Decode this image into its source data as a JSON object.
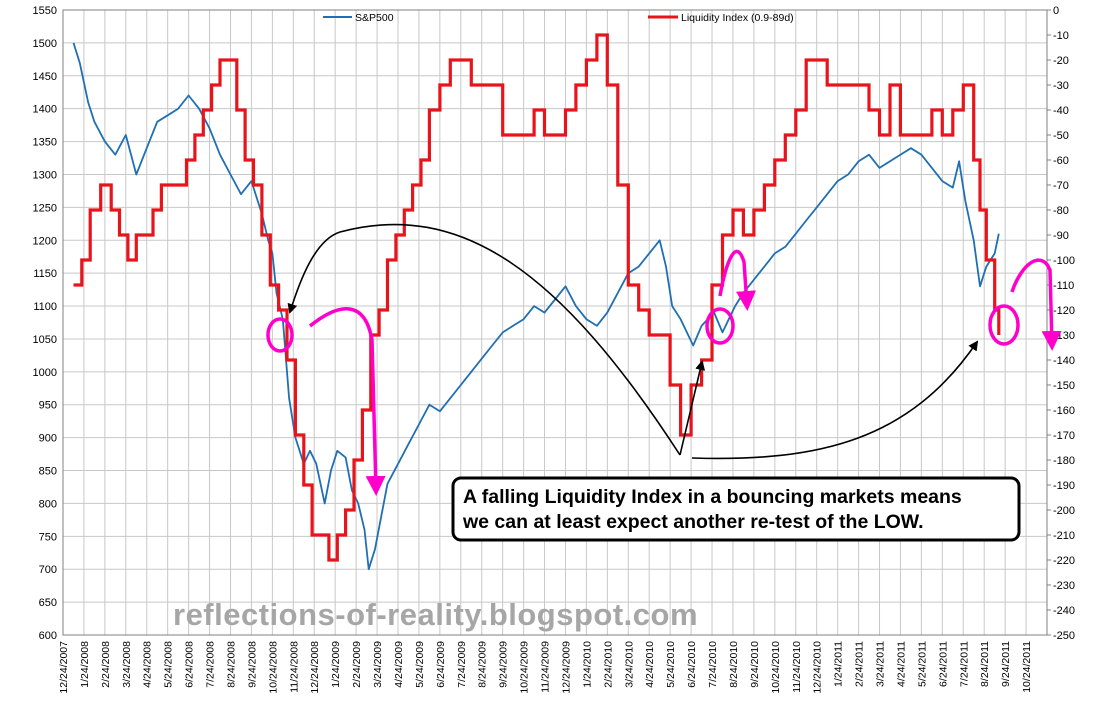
{
  "chart_data": {
    "type": "line",
    "title": "",
    "y_left": {
      "ylim": [
        600,
        1550
      ],
      "ticks": [
        "600",
        "650",
        "700",
        "750",
        "800",
        "850",
        "900",
        "950",
        "1000",
        "1050",
        "1100",
        "1150",
        "1200",
        "1250",
        "1300",
        "1350",
        "1400",
        "1450",
        "1500",
        "1550"
      ]
    },
    "y_right": {
      "ylim": [
        -250,
        0
      ],
      "ticks": [
        "0",
        "-10",
        "-20",
        "-30",
        "-40",
        "-50",
        "-60",
        "-70",
        "-80",
        "-90",
        "-100",
        "-110",
        "-120",
        "-130",
        "-140",
        "-150",
        "-160",
        "-170",
        "-180",
        "-190",
        "-200",
        "-210",
        "-220",
        "-230",
        "-240",
        "-250"
      ]
    },
    "x_ticks": [
      "12/24/2007",
      "1/24/2008",
      "2/24/2008",
      "3/24/2008",
      "4/24/2008",
      "5/24/2008",
      "6/24/2008",
      "7/24/2008",
      "8/24/2008",
      "9/24/2008",
      "10/24/2008",
      "11/24/2008",
      "12/24/2008",
      "1/24/2009",
      "2/24/2009",
      "3/24/2009",
      "4/24/2009",
      "5/24/2009",
      "6/24/2009",
      "7/24/2009",
      "8/24/2009",
      "9/24/2009",
      "10/24/2009",
      "11/24/2009",
      "12/24/2009",
      "1/24/2010",
      "2/24/2010",
      "3/24/2010",
      "4/24/2010",
      "5/24/2010",
      "6/24/2010",
      "7/24/2010",
      "8/24/2010",
      "9/24/2010",
      "10/24/2010",
      "11/24/2010",
      "12/24/2010",
      "1/24/2011",
      "2/24/2011",
      "3/24/2011",
      "4/24/2011",
      "5/24/2011",
      "6/24/2011",
      "7/24/2011",
      "8/24/2011",
      "9/24/2011",
      "10/24/2011"
    ],
    "grid": true,
    "legend_placement": "top",
    "series": [
      {
        "name": "S&P500",
        "axis": "left",
        "color": "#1f6fb4",
        "x": [
          0,
          0.3,
          0.7,
          1.0,
          1.5,
          2.0,
          2.5,
          3.0,
          3.5,
          4.0,
          4.5,
          5.0,
          5.5,
          6.0,
          6.5,
          7.0,
          7.5,
          8.0,
          8.5,
          8.8,
          9.0,
          9.3,
          9.5,
          9.7,
          10.0,
          10.3,
          10.6,
          11.0,
          11.3,
          11.6,
          12.0,
          12.3,
          12.6,
          13.0,
          13.3,
          13.6,
          13.9,
          14.1,
          14.4,
          14.7,
          15.0,
          15.5,
          16.0,
          16.5,
          17.0,
          17.5,
          18.0,
          18.5,
          19.0,
          19.5,
          20.0,
          20.5,
          21.0,
          21.5,
          22.0,
          22.5,
          23.0,
          23.5,
          24.0,
          24.5,
          25.0,
          25.5,
          26.0,
          26.5,
          27.0,
          27.5,
          28.0,
          28.3,
          28.6,
          29.0,
          29.3,
          29.6,
          30.0,
          30.3,
          30.6,
          31.0,
          31.3,
          31.6,
          32.0,
          32.5,
          33.0,
          33.5,
          34.0,
          34.5,
          35.0,
          35.5,
          36.0,
          36.5,
          37.0,
          37.5,
          38.0,
          38.5,
          39.0,
          39.5,
          40.0,
          40.5,
          41.0,
          41.5,
          42.0,
          42.3,
          42.6,
          43.0,
          43.3,
          43.6,
          44.0,
          44.2
        ],
        "values": [
          1500,
          1470,
          1410,
          1380,
          1350,
          1330,
          1360,
          1300,
          1340,
          1380,
          1390,
          1400,
          1420,
          1400,
          1370,
          1330,
          1300,
          1270,
          1290,
          1260,
          1240,
          1200,
          1180,
          1120,
          1080,
          960,
          900,
          860,
          880,
          860,
          800,
          850,
          880,
          870,
          820,
          800,
          760,
          700,
          730,
          780,
          830,
          860,
          890,
          920,
          950,
          940,
          960,
          980,
          1000,
          1020,
          1040,
          1060,
          1070,
          1080,
          1100,
          1090,
          1110,
          1130,
          1100,
          1080,
          1070,
          1090,
          1120,
          1150,
          1160,
          1180,
          1200,
          1160,
          1100,
          1080,
          1060,
          1040,
          1070,
          1080,
          1090,
          1060,
          1080,
          1100,
          1120,
          1140,
          1160,
          1180,
          1190,
          1210,
          1230,
          1250,
          1270,
          1290,
          1300,
          1320,
          1330,
          1310,
          1320,
          1330,
          1340,
          1330,
          1310,
          1290,
          1280,
          1320,
          1260,
          1200,
          1130,
          1160,
          1180,
          1210
        ]
      },
      {
        "name": "Liquidity Index (0.9-89d)",
        "axis": "right",
        "color": "#e8141c",
        "x": [
          0,
          0.4,
          0.8,
          1.3,
          1.8,
          2.2,
          2.6,
          3.0,
          3.4,
          3.8,
          4.2,
          4.6,
          5.0,
          5.4,
          5.8,
          6.2,
          6.6,
          7.0,
          7.4,
          7.8,
          8.2,
          8.6,
          9.0,
          9.4,
          9.8,
          10.2,
          10.6,
          11.0,
          11.4,
          11.8,
          12.2,
          12.6,
          13.0,
          13.4,
          13.8,
          14.2,
          14.6,
          15.0,
          15.4,
          15.8,
          16.2,
          16.6,
          17.0,
          17.5,
          18.0,
          18.5,
          19.0,
          19.5,
          20.0,
          20.5,
          21.0,
          21.5,
          22.0,
          22.5,
          23.0,
          23.5,
          24.0,
          24.5,
          25.0,
          25.5,
          26.0,
          26.5,
          27.0,
          27.5,
          28.0,
          28.5,
          29.0,
          29.5,
          30.0,
          30.5,
          31.0,
          31.5,
          32.0,
          32.5,
          33.0,
          33.5,
          34.0,
          34.5,
          35.0,
          35.5,
          36.0,
          36.5,
          37.0,
          37.5,
          38.0,
          38.5,
          39.0,
          39.5,
          40.0,
          40.5,
          41.0,
          41.5,
          42.0,
          42.5,
          43.0,
          43.3,
          43.6,
          44.0,
          44.2
        ],
        "values": [
          -110,
          -100,
          -80,
          -70,
          -80,
          -90,
          -100,
          -90,
          -90,
          -80,
          -70,
          -70,
          -70,
          -60,
          -50,
          -40,
          -30,
          -20,
          -20,
          -40,
          -60,
          -70,
          -90,
          -110,
          -120,
          -140,
          -170,
          -190,
          -210,
          -210,
          -220,
          -210,
          -200,
          -180,
          -160,
          -130,
          -120,
          -100,
          -90,
          -80,
          -70,
          -60,
          -40,
          -30,
          -20,
          -20,
          -30,
          -30,
          -30,
          -50,
          -50,
          -50,
          -40,
          -50,
          -50,
          -40,
          -30,
          -20,
          -10,
          -30,
          -70,
          -110,
          -120,
          -130,
          -130,
          -150,
          -170,
          -150,
          -140,
          -110,
          -90,
          -80,
          -90,
          -80,
          -70,
          -60,
          -50,
          -40,
          -20,
          -20,
          -30,
          -30,
          -30,
          -30,
          -40,
          -50,
          -30,
          -50,
          -50,
          -50,
          -40,
          -50,
          -40,
          -30,
          -60,
          -80,
          -100,
          -120,
          -130
        ]
      }
    ]
  },
  "callout": {
    "line1": "A falling Liquidity Index in a bouncing markets means",
    "line2": "we can at least expect another re-test of the LOW."
  },
  "watermark": "reflections-of-reality.blogspot.com",
  "colors": {
    "sp500": "#1f6fb4",
    "liquidity": "#e8141c",
    "annotation": "#ff00cc",
    "arrows": "#000000",
    "grid": "#c8c8c8"
  }
}
